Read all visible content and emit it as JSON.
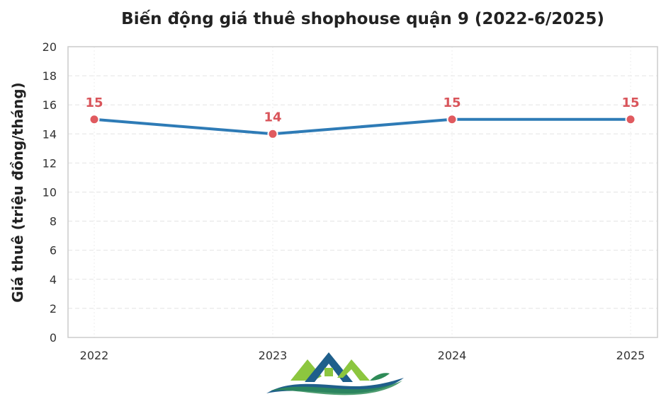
{
  "chart_data": {
    "type": "line",
    "title": "Biến động giá thuê shophouse quận 9 (2022-6/2025)",
    "xlabel": "",
    "ylabel": "Giá thuê (triệu đồng/tháng)",
    "categories": [
      "2022",
      "2023",
      "2024",
      "2025"
    ],
    "series": [
      {
        "values": [
          15,
          14,
          15,
          15
        ]
      }
    ],
    "data_labels": [
      "15",
      "14",
      "15",
      "15"
    ],
    "ylim": [
      0,
      20
    ],
    "yticks": [
      0,
      2,
      4,
      6,
      8,
      10,
      12,
      14,
      16,
      18,
      20
    ],
    "grid": true,
    "legend": "none",
    "colors": {
      "line": "#2e7bb6",
      "marker": "#e05a5f",
      "label": "#d9545a",
      "axis": "#cccccc"
    }
  },
  "watermark": {
    "name": "house-wave-logo",
    "colors": [
      "#8cc63f",
      "#1f5f8b",
      "#2e8b57"
    ]
  }
}
